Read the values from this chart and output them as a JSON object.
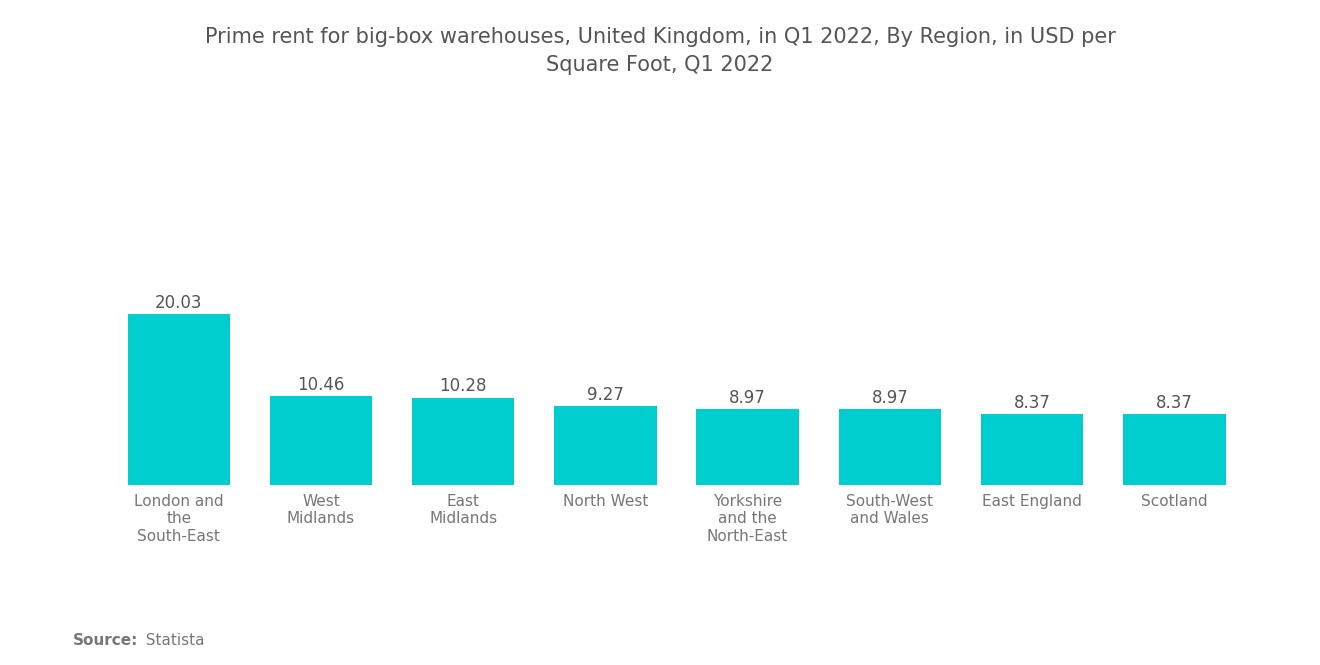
{
  "title": "Prime rent for big-box warehouses, United Kingdom, in Q1 2022, By Region, in USD per\nSquare Foot, Q1 2022",
  "categories": [
    "London and\nthe\nSouth-East",
    "West\nMidlands",
    "East\nMidlands",
    "North West",
    "Yorkshire\nand the\nNorth-East",
    "South-West\nand Wales",
    "East England",
    "Scotland"
  ],
  "values": [
    20.03,
    10.46,
    10.28,
    9.27,
    8.97,
    8.97,
    8.37,
    8.37
  ],
  "bar_color": "#00CECE",
  "background_color": "#ffffff",
  "title_color": "#555555",
  "label_color": "#777777",
  "value_color": "#555555",
  "source_bold": "Source:",
  "source_normal": "  Statista",
  "ylim": [
    0,
    28
  ],
  "title_fontsize": 15,
  "value_fontsize": 12,
  "tick_fontsize": 11,
  "source_fontsize": 11
}
